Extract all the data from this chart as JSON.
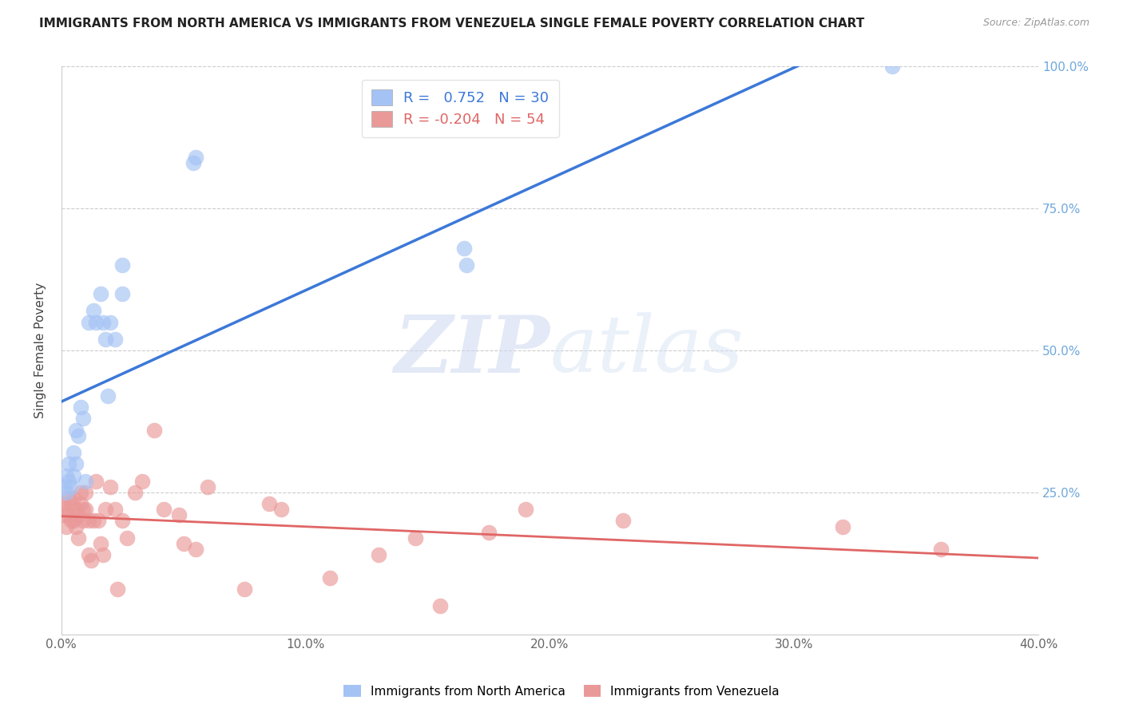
{
  "title": "IMMIGRANTS FROM NORTH AMERICA VS IMMIGRANTS FROM VENEZUELA SINGLE FEMALE POVERTY CORRELATION CHART",
  "source": "Source: ZipAtlas.com",
  "ylabel": "Single Female Poverty",
  "xlim": [
    0.0,
    0.4
  ],
  "ylim": [
    0.0,
    1.0
  ],
  "xticks": [
    0.0,
    0.1,
    0.2,
    0.3,
    0.4
  ],
  "xtick_labels": [
    "0.0%",
    "10.0%",
    "20.0%",
    "30.0%",
    "40.0%"
  ],
  "yticks": [
    0.0,
    0.25,
    0.5,
    0.75,
    1.0
  ],
  "right_ytick_labels": [
    "",
    "25.0%",
    "50.0%",
    "75.0%",
    "100.0%"
  ],
  "blue_R": 0.752,
  "blue_N": 30,
  "pink_R": -0.204,
  "pink_N": 54,
  "blue_color": "#a4c2f4",
  "pink_color": "#ea9999",
  "blue_line_color": "#3c78d8",
  "pink_line_color": "#e06666",
  "watermark_zip": "ZIP",
  "watermark_atlas": "atlas",
  "blue_x": [
    0.001,
    0.002,
    0.002,
    0.003,
    0.003,
    0.004,
    0.005,
    0.005,
    0.006,
    0.006,
    0.007,
    0.008,
    0.009,
    0.01,
    0.011,
    0.013,
    0.014,
    0.016,
    0.017,
    0.018,
    0.019,
    0.02,
    0.022,
    0.025,
    0.025,
    0.054,
    0.055,
    0.165,
    0.166,
    0.34
  ],
  "blue_y": [
    0.26,
    0.25,
    0.28,
    0.27,
    0.3,
    0.26,
    0.28,
    0.32,
    0.36,
    0.3,
    0.35,
    0.4,
    0.38,
    0.27,
    0.55,
    0.57,
    0.55,
    0.6,
    0.55,
    0.52,
    0.42,
    0.55,
    0.52,
    0.65,
    0.6,
    0.83,
    0.84,
    0.68,
    0.65,
    1.0
  ],
  "pink_x": [
    0.001,
    0.001,
    0.002,
    0.002,
    0.003,
    0.003,
    0.004,
    0.004,
    0.005,
    0.005,
    0.006,
    0.006,
    0.007,
    0.007,
    0.008,
    0.008,
    0.009,
    0.009,
    0.01,
    0.01,
    0.011,
    0.011,
    0.012,
    0.013,
    0.014,
    0.015,
    0.016,
    0.017,
    0.018,
    0.02,
    0.022,
    0.023,
    0.025,
    0.027,
    0.03,
    0.033,
    0.038,
    0.042,
    0.048,
    0.05,
    0.055,
    0.06,
    0.075,
    0.085,
    0.09,
    0.11,
    0.13,
    0.145,
    0.155,
    0.175,
    0.19,
    0.23,
    0.32,
    0.36
  ],
  "pink_y": [
    0.21,
    0.23,
    0.19,
    0.22,
    0.21,
    0.24,
    0.2,
    0.23,
    0.2,
    0.24,
    0.22,
    0.19,
    0.17,
    0.21,
    0.25,
    0.23,
    0.22,
    0.2,
    0.22,
    0.25,
    0.2,
    0.14,
    0.13,
    0.2,
    0.27,
    0.2,
    0.16,
    0.14,
    0.22,
    0.26,
    0.22,
    0.08,
    0.2,
    0.17,
    0.25,
    0.27,
    0.36,
    0.22,
    0.21,
    0.16,
    0.15,
    0.26,
    0.08,
    0.23,
    0.22,
    0.1,
    0.14,
    0.17,
    0.05,
    0.18,
    0.22,
    0.2,
    0.19,
    0.15
  ]
}
